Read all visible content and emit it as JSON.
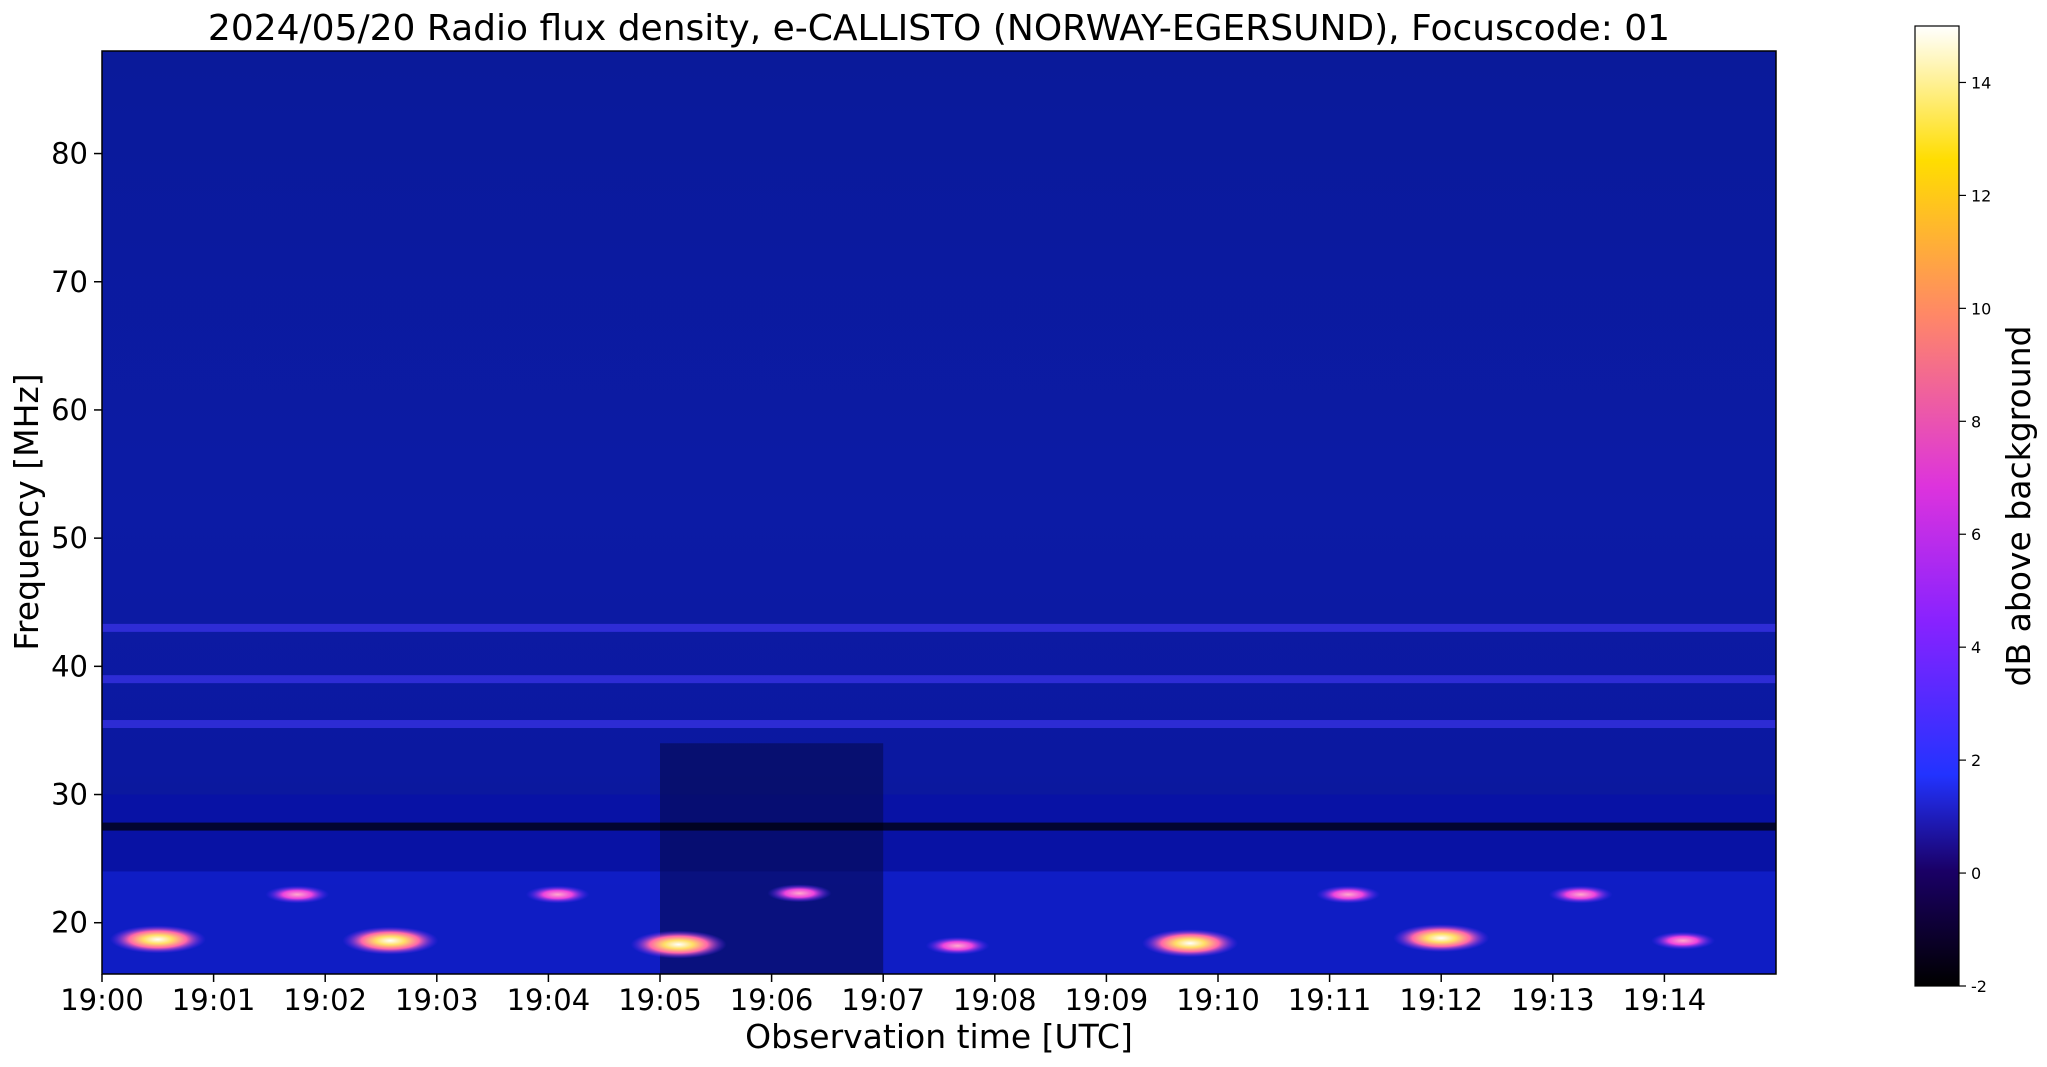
{
  "chart_data": {
    "type": "heatmap",
    "title": "2024/05/20  Radio flux density, e-CALLISTO (NORWAY-EGERSUND), Focuscode: 01",
    "xlabel": "Observation time [UTC]",
    "ylabel": "Frequency [MHz]",
    "colorbar_label": "dB above background",
    "colormap": "gnuplot2",
    "x_ticks": [
      "19:00",
      "19:01",
      "19:02",
      "19:03",
      "19:04",
      "19:05",
      "19:06",
      "19:07",
      "19:08",
      "19:09",
      "19:10",
      "19:11",
      "19:12",
      "19:13",
      "19:14"
    ],
    "xlim": [
      "19:00:00",
      "19:15:00"
    ],
    "y_ticks": [
      20,
      30,
      40,
      50,
      60,
      70,
      80
    ],
    "ylim": [
      16,
      88
    ],
    "colorbar_ticks": [
      -2,
      0,
      2,
      4,
      6,
      8,
      10,
      12,
      14
    ],
    "colorbar_range": [
      -2,
      15
    ],
    "grid": false,
    "features": {
      "background_db": 0.3,
      "interference_bands": [
        {
          "freq_mhz": 43,
          "kind": "bright",
          "db": 3
        },
        {
          "freq_mhz": 27.5,
          "kind": "dark",
          "db": -2
        },
        {
          "freq_mhz": 39,
          "kind": "bright",
          "db": 2
        },
        {
          "freq_mhz": 35.5,
          "kind": "bright",
          "db": 2
        }
      ],
      "bright_spots": [
        {
          "time": "19:00:30",
          "freq_mhz": 18.7,
          "db": 14.5
        },
        {
          "time": "19:02:35",
          "freq_mhz": 18.6,
          "db": 14.5
        },
        {
          "time": "19:05:10",
          "freq_mhz": 18.3,
          "db": 12
        },
        {
          "time": "19:07:40",
          "freq_mhz": 18.2,
          "db": 8
        },
        {
          "time": "19:09:45",
          "freq_mhz": 18.4,
          "db": 12
        },
        {
          "time": "19:12:00",
          "freq_mhz": 18.8,
          "db": 12
        },
        {
          "time": "19:14:10",
          "freq_mhz": 18.6,
          "db": 8
        },
        {
          "time": "19:04:05",
          "freq_mhz": 22.2,
          "db": 10
        },
        {
          "time": "19:01:45",
          "freq_mhz": 22.2,
          "db": 9
        },
        {
          "time": "19:11:10",
          "freq_mhz": 22.2,
          "db": 8
        },
        {
          "time": "19:06:15",
          "freq_mhz": 22.3,
          "db": 8
        },
        {
          "time": "19:13:15",
          "freq_mhz": 22.2,
          "db": 7
        }
      ]
    }
  }
}
